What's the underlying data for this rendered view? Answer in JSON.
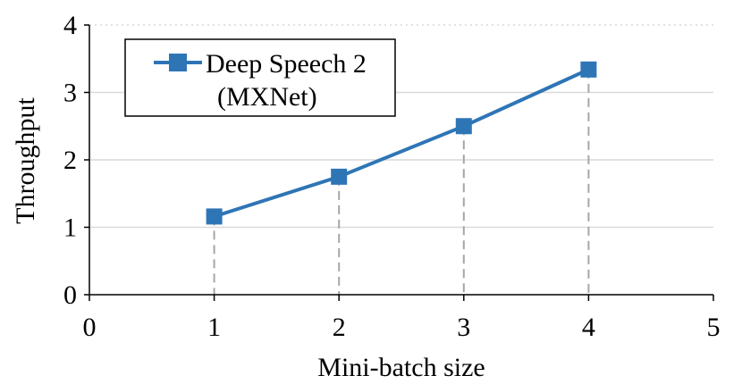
{
  "chart_data": {
    "type": "line",
    "title": "",
    "xlabel": "Mini-batch size",
    "ylabel": "Throughput",
    "xlim": [
      0,
      5
    ],
    "ylim": [
      0,
      4
    ],
    "x_ticks": [
      0,
      1,
      2,
      3,
      4,
      5
    ],
    "y_ticks": [
      0,
      1,
      2,
      3,
      4
    ],
    "grid": "horizontal",
    "drop_lines": true,
    "legend": {
      "placement": "top-left",
      "entries": [
        {
          "line1": "Deep Speech 2",
          "line2": "(MXNet)"
        }
      ]
    },
    "series": [
      {
        "name": "Deep Speech 2 (MXNet)",
        "color": "#2e75b6",
        "marker": "square",
        "x": [
          1,
          2,
          3,
          4
        ],
        "y": [
          1.16,
          1.75,
          2.5,
          3.34
        ]
      }
    ]
  }
}
